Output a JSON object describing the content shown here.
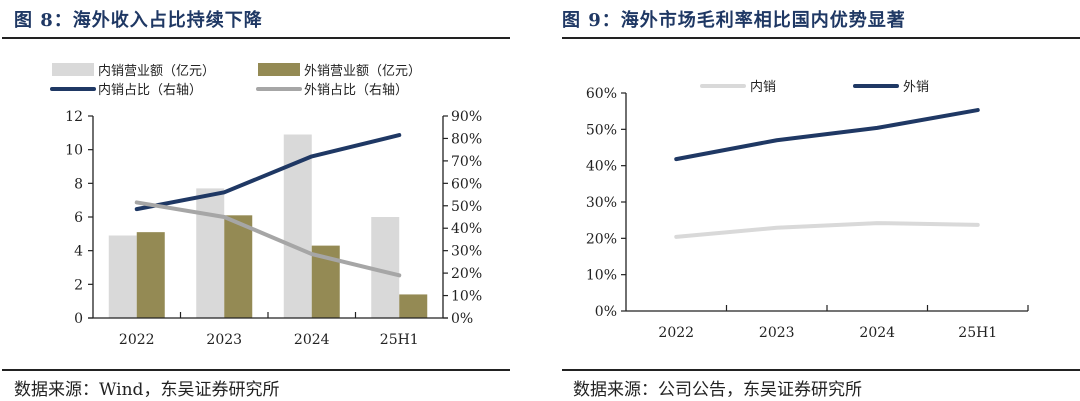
{
  "chart_data": [
    {
      "id": "fig8",
      "type": "bar",
      "title": "图 8：海外收入占比持续下降",
      "categories": [
        "2022",
        "2023",
        "2024",
        "25H1"
      ],
      "series": [
        {
          "name": "内销营业额（亿元）",
          "kind": "bar",
          "axis": "left",
          "color": "#d9d9d9",
          "values": [
            4.9,
            7.7,
            10.9,
            6.0
          ]
        },
        {
          "name": "外销营业额（亿元）",
          "kind": "bar",
          "axis": "left",
          "color": "#948a54",
          "values": [
            5.1,
            6.1,
            4.3,
            1.4
          ]
        },
        {
          "name": "内销占比（右轴）",
          "kind": "line",
          "axis": "right",
          "color": "#1f3864",
          "values": [
            48.5,
            56.0,
            72.0,
            81.5
          ]
        },
        {
          "name": "外销占比（右轴）",
          "kind": "line",
          "axis": "right",
          "color": "#a6a6a6",
          "values": [
            51.5,
            45.0,
            28.5,
            19.0
          ]
        }
      ],
      "ylim": [
        0,
        12
      ],
      "yticks": [
        "0",
        "2",
        "4",
        "6",
        "8",
        "10",
        "12"
      ],
      "y2lim": [
        0,
        90
      ],
      "y2ticks": [
        "0%",
        "10%",
        "20%",
        "30%",
        "40%",
        "50%",
        "60%",
        "70%",
        "80%",
        "90%"
      ],
      "xlabel": "",
      "ylabel": "",
      "y2label": "",
      "grid": false,
      "legend_position": "top",
      "source": "数据来源：Wind，东吴证券研究所"
    },
    {
      "id": "fig9",
      "type": "line",
      "title": "图 9：海外市场毛利率相比国内优势显著",
      "categories": [
        "2022",
        "2023",
        "2024",
        "25H1"
      ],
      "series": [
        {
          "name": "内销",
          "color": "#d9d9d9",
          "values": [
            20.4,
            22.9,
            24.2,
            23.7
          ]
        },
        {
          "name": "外销",
          "color": "#1f3864",
          "values": [
            41.8,
            47.0,
            50.4,
            55.3
          ]
        }
      ],
      "ylim": [
        0,
        60
      ],
      "yticks": [
        "0%",
        "10%",
        "20%",
        "30%",
        "40%",
        "50%",
        "60%"
      ],
      "xlabel": "",
      "ylabel": "",
      "grid": false,
      "legend_position": "top",
      "source": "数据来源：公司公告，东吴证券研究所"
    }
  ]
}
